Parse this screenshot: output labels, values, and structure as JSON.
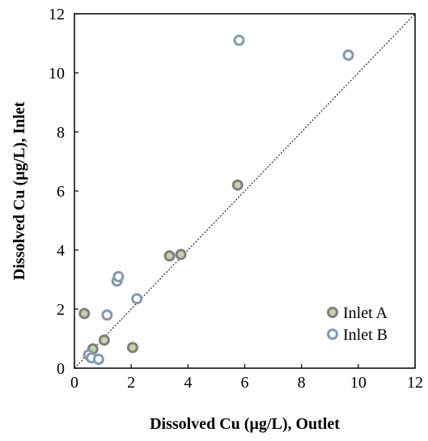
{
  "chart_data": {
    "type": "scatter",
    "title": "",
    "xlabel": "Dissolved Cu (µg/L), Outlet",
    "ylabel": "Dissolved Cu (µg/L), Inlet",
    "xlim": [
      0,
      12
    ],
    "ylim": [
      0,
      12
    ],
    "x_ticks": [
      "0",
      "2",
      "4",
      "6",
      "8",
      "10",
      "12"
    ],
    "y_ticks": [
      "0",
      "2",
      "4",
      "6",
      "8",
      "10",
      "12"
    ],
    "grid": false,
    "legend_position": "bottom-right",
    "reference_line": "1:1 dotted",
    "series": [
      {
        "name": "Inlet A",
        "fill_color": "#c3d3a5",
        "stroke_color": "#7f7f7f",
        "points": [
          {
            "x": 0.35,
            "y": 1.85
          },
          {
            "x": 0.65,
            "y": 0.65
          },
          {
            "x": 1.05,
            "y": 0.95
          },
          {
            "x": 2.05,
            "y": 0.7
          },
          {
            "x": 3.35,
            "y": 3.8
          },
          {
            "x": 3.75,
            "y": 3.85
          },
          {
            "x": 5.75,
            "y": 6.2
          }
        ]
      },
      {
        "name": "Inlet B",
        "fill_color": "#ffffff",
        "stroke_color": "#8497b0",
        "points": [
          {
            "x": 0.5,
            "y": 0.45
          },
          {
            "x": 0.6,
            "y": 0.35
          },
          {
            "x": 0.85,
            "y": 0.3
          },
          {
            "x": 1.15,
            "y": 1.8
          },
          {
            "x": 1.5,
            "y": 2.95
          },
          {
            "x": 1.55,
            "y": 3.1
          },
          {
            "x": 2.2,
            "y": 2.35
          },
          {
            "x": 5.8,
            "y": 11.1
          },
          {
            "x": 9.65,
            "y": 10.6
          }
        ]
      }
    ]
  }
}
